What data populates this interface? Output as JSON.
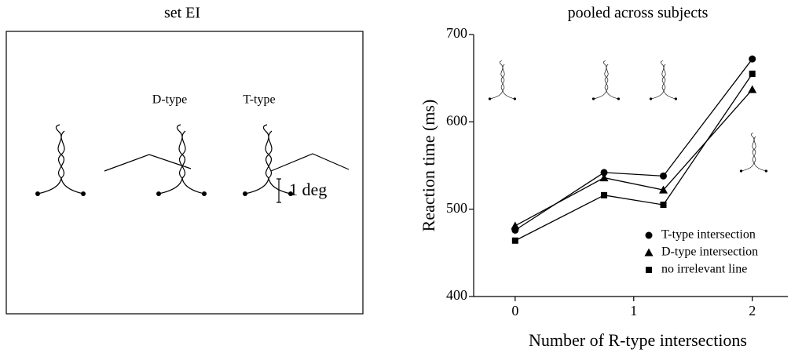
{
  "stimulus_panel": {
    "title": "set EI",
    "labels": [
      "D-type",
      "T-type"
    ],
    "scale_label": "1 deg"
  },
  "chart_data": {
    "type": "line",
    "title": "pooled across subjects",
    "x_label": "Number of R-type intersections",
    "y_label": "Reaction time (ms)",
    "x": [
      0,
      0.75,
      1.25,
      2
    ],
    "series": [
      {
        "name": "T-type intersection",
        "color": "#000000",
        "marker": "circle",
        "values": [
          476,
          542,
          538,
          672
        ]
      },
      {
        "name": "D-type intersection",
        "color": "#000000",
        "marker": "triangle",
        "values": [
          481,
          536,
          522,
          637
        ]
      },
      {
        "name": "no irrelevant line",
        "color": "#000000",
        "marker": "square",
        "values": [
          464,
          516,
          505,
          655
        ]
      }
    ],
    "xlim": [
      -0.35,
      2.3
    ],
    "xticks": [
      0,
      1,
      2
    ],
    "ylim": [
      400,
      700
    ],
    "yticks": [
      400,
      500,
      600,
      700
    ]
  }
}
